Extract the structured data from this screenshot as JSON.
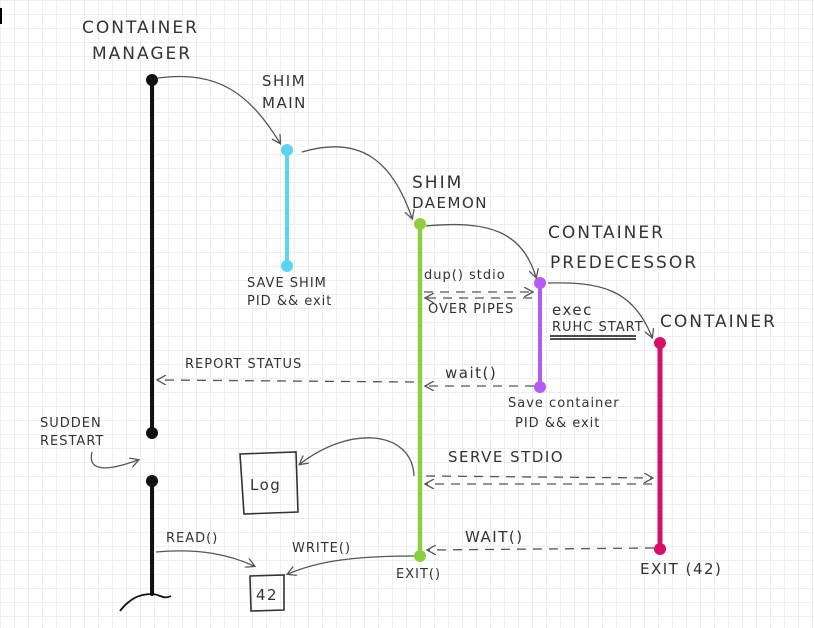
{
  "participants": {
    "container_manager": {
      "line1": "CONTAINER",
      "line2": "MANAGER"
    },
    "shim_main": {
      "line1": "SHIM",
      "line2": "MAIN"
    },
    "shim_daemon": {
      "line1": "SHIM",
      "line2": "DAEMON"
    },
    "container_predecessor": {
      "line1": "CONTAINER",
      "line2": "PREDECESSOR"
    },
    "container": {
      "label": "CONTAINER"
    }
  },
  "notes": {
    "shim_main_exit": {
      "line1": "SAVE SHIM",
      "line2": "PID && exit"
    },
    "dup_stdio": {
      "line1": "dup() stdio",
      "line2": "OVER PIPES"
    },
    "exec": {
      "line1": "exec",
      "line2": "RUHC START"
    },
    "report_status": "REPORT STATUS",
    "wait_predecessor": "wait()",
    "save_container": {
      "line1": "Save container",
      "line2": "PID && exit"
    },
    "sudden_restart": {
      "line1": "SUDDEN",
      "line2": "RESTART"
    },
    "serve_stdio": "SERVE STDIO",
    "read": "READ()",
    "write": "WRITE()",
    "wait_container": "WAIT()",
    "shim_exit": "EXIT()",
    "container_exit": "EXIT (42)"
  },
  "boxes": {
    "log": "Log",
    "exit_code": "42"
  },
  "colors": {
    "manager": "#111111",
    "shim_main": "#5dd3f0",
    "shim_daemon": "#8ccf3f",
    "predecessor": "#b35cf0",
    "container": "#d5106a",
    "ink": "#555555"
  }
}
